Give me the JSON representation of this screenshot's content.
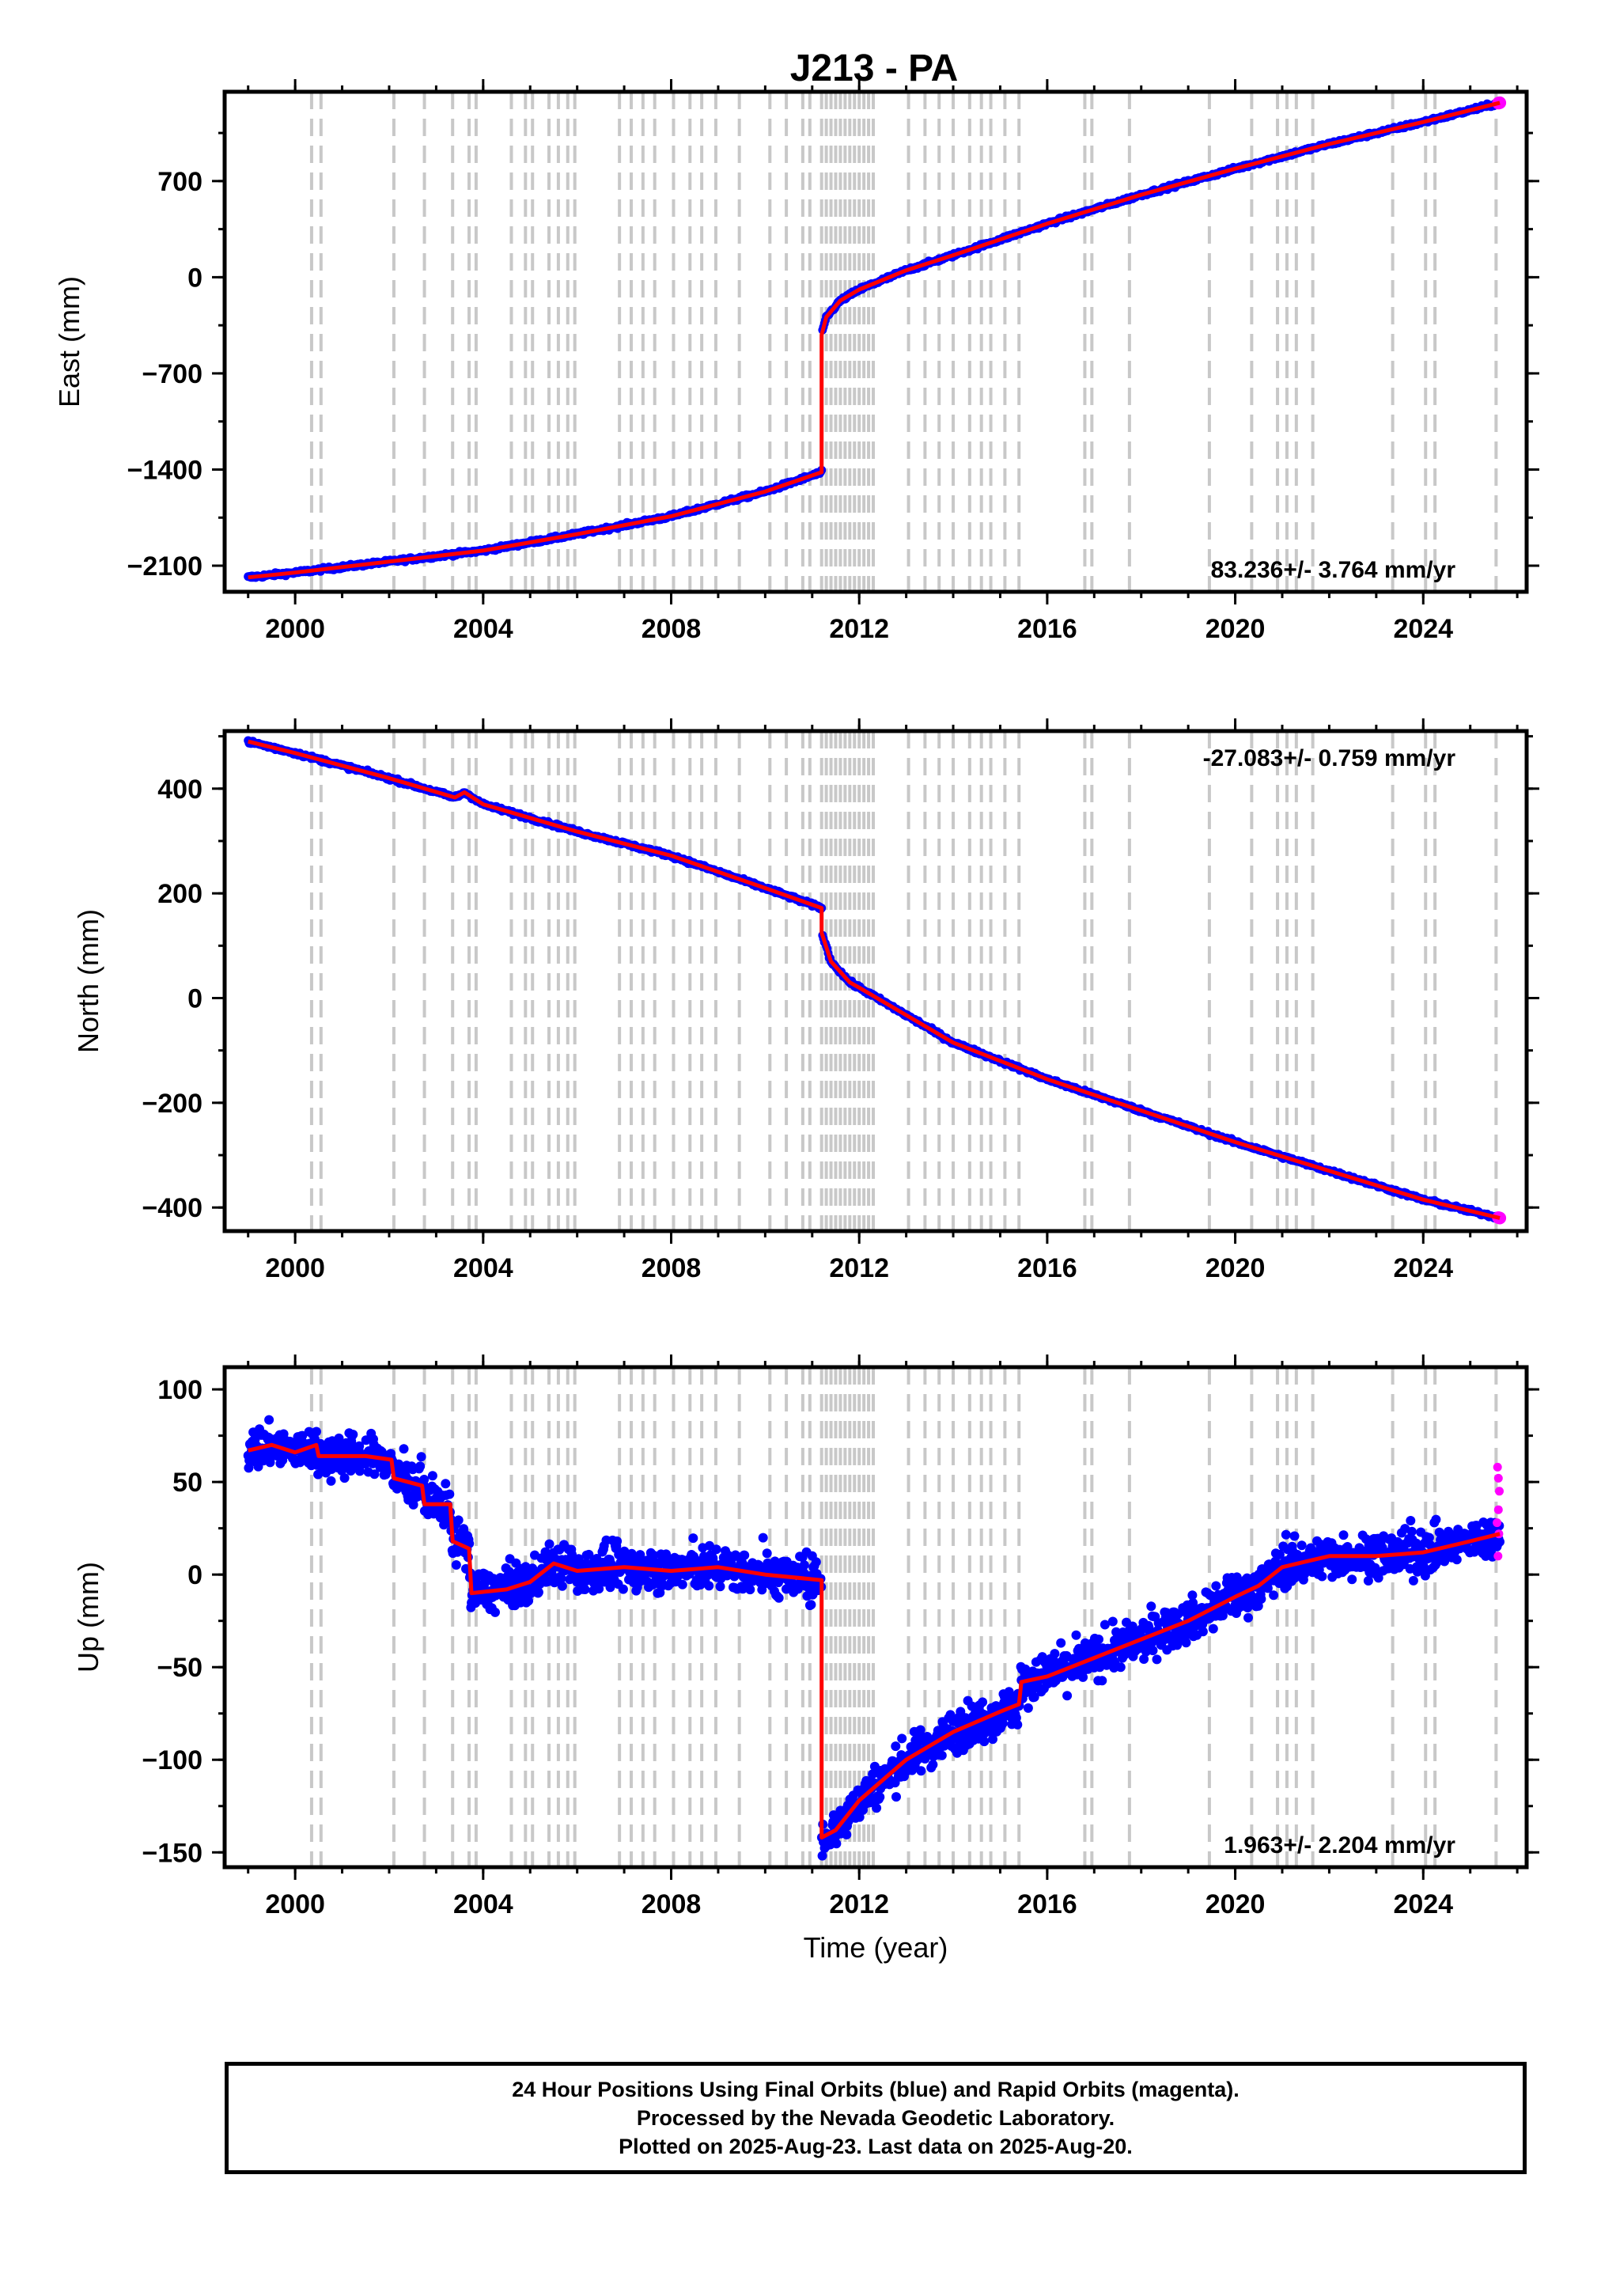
{
  "figure": {
    "title": "J213 - PA",
    "footer_lines": [
      "24 Hour Positions Using Final Orbits (blue) and Rapid Orbits (magenta).",
      "Processed by the Nevada Geodetic Laboratory.",
      "Plotted on 2025-Aug-23. Last data on 2025-Aug-20."
    ]
  },
  "chart_data": [
    {
      "type": "scatter",
      "title": "J213 - PA",
      "xlabel": "",
      "ylabel": "East (mm)",
      "xlim": [
        1998.5,
        2026.2
      ],
      "ylim": [
        -2290,
        1350
      ],
      "xticks": [
        2000,
        2004,
        2008,
        2012,
        2016,
        2020,
        2024
      ],
      "yticks": [
        700,
        0,
        -700,
        -1400,
        -2100
      ],
      "rate_label": "83.236+/- 3.764 mm/yr",
      "rate_position": "bottom-right",
      "data_range": [
        1999.0,
        2025.63
      ],
      "series": [
        {
          "name": "Final Orbits",
          "color": "#0000ff"
        },
        {
          "name": "Rapid Orbits",
          "color": "#ff00ff"
        },
        {
          "name": "Model",
          "color": "#ff0000"
        }
      ],
      "trend_points": [
        [
          1999.0,
          -2185
        ],
        [
          2000.0,
          -2150
        ],
        [
          2002.0,
          -2070
        ],
        [
          2004.0,
          -1990
        ],
        [
          2006.0,
          -1870
        ],
        [
          2008.0,
          -1740
        ],
        [
          2010.0,
          -1560
        ],
        [
          2011.2,
          -1420
        ],
        [
          2011.2,
          -420
        ],
        [
          2011.3,
          -290
        ],
        [
          2011.6,
          -170
        ],
        [
          2012.0,
          -90
        ],
        [
          2013.0,
          50
        ],
        [
          2014.0,
          160
        ],
        [
          2016.0,
          390
        ],
        [
          2018.0,
          600
        ],
        [
          2020.0,
          790
        ],
        [
          2022.0,
          970
        ],
        [
          2024.0,
          1130
        ],
        [
          2025.63,
          1270
        ]
      ],
      "grid_lines_x": [
        2000.35,
        2000.55,
        2002.1,
        2002.75,
        2003.35,
        2003.7,
        2003.85,
        2004.6,
        2004.9,
        2005.05,
        2005.4,
        2005.6,
        2005.8,
        2005.95,
        2006.9,
        2007.15,
        2007.4,
        2007.65,
        2008.05,
        2008.4,
        2008.65,
        2008.95,
        2009.45,
        2010.1,
        2010.45,
        2010.8,
        2010.95,
        2011.2,
        2011.3,
        2011.4,
        2011.5,
        2011.6,
        2011.7,
        2011.8,
        2011.9,
        2012.0,
        2012.1,
        2012.2,
        2012.3,
        2013.05,
        2013.4,
        2013.7,
        2014.0,
        2014.35,
        2014.6,
        2014.8,
        2015.1,
        2015.4,
        2016.8,
        2016.95,
        2017.75,
        2019.45,
        2020.35,
        2020.9,
        2021.1,
        2021.3,
        2021.65,
        2023.35,
        2024.05,
        2024.25,
        2025.55
      ]
    },
    {
      "type": "scatter",
      "xlabel": "",
      "ylabel": "North (mm)",
      "xlim": [
        1998.5,
        2026.2
      ],
      "ylim": [
        -445,
        510
      ],
      "xticks": [
        2000,
        2004,
        2008,
        2012,
        2016,
        2020,
        2024
      ],
      "yticks": [
        400,
        200,
        0,
        -200,
        -400
      ],
      "rate_label": "-27.083+/- 0.759 mm/yr",
      "rate_position": "top-right",
      "data_range": [
        1999.0,
        2025.63
      ],
      "series": [
        {
          "name": "Final Orbits",
          "color": "#0000ff"
        },
        {
          "name": "Rapid Orbits",
          "color": "#ff00ff"
        },
        {
          "name": "Model",
          "color": "#ff0000"
        }
      ],
      "trend_points": [
        [
          1999.0,
          490
        ],
        [
          2000.0,
          468
        ],
        [
          2002.0,
          420
        ],
        [
          2003.4,
          383
        ],
        [
          2003.6,
          393
        ],
        [
          2004.0,
          370
        ],
        [
          2006.0,
          318
        ],
        [
          2008.0,
          272
        ],
        [
          2010.0,
          210
        ],
        [
          2011.2,
          172
        ],
        [
          2011.2,
          125
        ],
        [
          2011.4,
          70
        ],
        [
          2011.8,
          30
        ],
        [
          2012.0,
          20
        ],
        [
          2014.0,
          -85
        ],
        [
          2016.0,
          -155
        ],
        [
          2018.0,
          -215
        ],
        [
          2020.0,
          -275
        ],
        [
          2022.0,
          -330
        ],
        [
          2024.0,
          -385
        ],
        [
          2025.63,
          -420
        ]
      ],
      "grid_lines_x": [
        2000.35,
        2000.55,
        2002.1,
        2002.75,
        2003.35,
        2003.7,
        2003.85,
        2004.6,
        2004.9,
        2005.05,
        2005.4,
        2005.6,
        2005.8,
        2005.95,
        2006.9,
        2007.15,
        2007.4,
        2007.65,
        2008.05,
        2008.4,
        2008.65,
        2008.95,
        2009.45,
        2010.1,
        2010.45,
        2010.8,
        2010.95,
        2011.2,
        2011.3,
        2011.4,
        2011.5,
        2011.6,
        2011.7,
        2011.8,
        2011.9,
        2012.0,
        2012.1,
        2012.2,
        2012.3,
        2013.05,
        2013.4,
        2013.7,
        2014.0,
        2014.35,
        2014.6,
        2014.8,
        2015.1,
        2015.4,
        2016.8,
        2016.95,
        2017.75,
        2019.45,
        2020.35,
        2020.9,
        2021.1,
        2021.3,
        2021.65,
        2023.35,
        2024.05,
        2024.25,
        2025.55
      ]
    },
    {
      "type": "scatter",
      "xlabel": "Time (year)",
      "ylabel": "Up (mm)",
      "xlim": [
        1998.5,
        2026.2
      ],
      "ylim": [
        -158,
        112
      ],
      "xticks": [
        2000,
        2004,
        2008,
        2012,
        2016,
        2020,
        2024
      ],
      "yticks": [
        100,
        50,
        0,
        -50,
        -100,
        -150
      ],
      "rate_label": "1.963+/- 2.204 mm/yr",
      "rate_position": "bottom-right",
      "data_range": [
        1999.0,
        2025.63
      ],
      "scatter_noise_mm": 8,
      "series": [
        {
          "name": "Final Orbits",
          "color": "#0000ff"
        },
        {
          "name": "Rapid Orbits",
          "color": "#ff00ff"
        },
        {
          "name": "Model",
          "color": "#ff0000"
        }
      ],
      "trend_points": [
        [
          1999.0,
          67
        ],
        [
          1999.5,
          70
        ],
        [
          2000.0,
          66
        ],
        [
          2000.45,
          70
        ],
        [
          2000.5,
          64
        ],
        [
          2001.5,
          64
        ],
        [
          2002.05,
          62
        ],
        [
          2002.1,
          52
        ],
        [
          2002.7,
          48
        ],
        [
          2002.75,
          38
        ],
        [
          2003.3,
          38
        ],
        [
          2003.35,
          18
        ],
        [
          2003.7,
          14
        ],
        [
          2003.75,
          -10
        ],
        [
          2004.5,
          -8
        ],
        [
          2005.0,
          -4
        ],
        [
          2005.5,
          6
        ],
        [
          2006.0,
          2
        ],
        [
          2007.0,
          4
        ],
        [
          2008.0,
          2
        ],
        [
          2009.0,
          4
        ],
        [
          2010.0,
          0
        ],
        [
          2011.2,
          -3
        ],
        [
          2011.2,
          -142
        ],
        [
          2011.5,
          -138
        ],
        [
          2012.0,
          -122
        ],
        [
          2013.0,
          -100
        ],
        [
          2014.0,
          -85
        ],
        [
          2015.0,
          -74
        ],
        [
          2015.4,
          -70
        ],
        [
          2015.45,
          -58
        ],
        [
          2016.0,
          -55
        ],
        [
          2017.0,
          -45
        ],
        [
          2018.0,
          -35
        ],
        [
          2019.0,
          -25
        ],
        [
          2020.0,
          -12
        ],
        [
          2020.5,
          -6
        ],
        [
          2021.0,
          4
        ],
        [
          2022.0,
          10
        ],
        [
          2023.0,
          10
        ],
        [
          2024.0,
          12
        ],
        [
          2025.0,
          18
        ],
        [
          2025.63,
          22
        ]
      ],
      "rapid_points": [
        [
          2025.58,
          58
        ],
        [
          2025.6,
          52
        ],
        [
          2025.62,
          45
        ],
        [
          2025.6,
          35
        ],
        [
          2025.57,
          28
        ],
        [
          2025.61,
          22
        ],
        [
          2025.59,
          10
        ]
      ],
      "grid_lines_x": [
        2000.35,
        2000.55,
        2002.1,
        2002.75,
        2003.35,
        2003.7,
        2003.85,
        2004.6,
        2004.9,
        2005.05,
        2005.4,
        2005.6,
        2005.8,
        2005.95,
        2006.9,
        2007.15,
        2007.4,
        2007.65,
        2008.05,
        2008.4,
        2008.65,
        2008.95,
        2009.45,
        2010.1,
        2010.45,
        2010.8,
        2010.95,
        2011.2,
        2011.3,
        2011.4,
        2011.5,
        2011.6,
        2011.7,
        2011.8,
        2011.9,
        2012.0,
        2012.1,
        2012.2,
        2012.3,
        2013.05,
        2013.4,
        2013.7,
        2014.0,
        2014.35,
        2014.6,
        2014.8,
        2015.1,
        2015.4,
        2016.8,
        2016.95,
        2017.75,
        2019.45,
        2020.35,
        2020.9,
        2021.1,
        2021.3,
        2021.65,
        2023.35,
        2024.05,
        2024.25,
        2025.55
      ]
    }
  ]
}
